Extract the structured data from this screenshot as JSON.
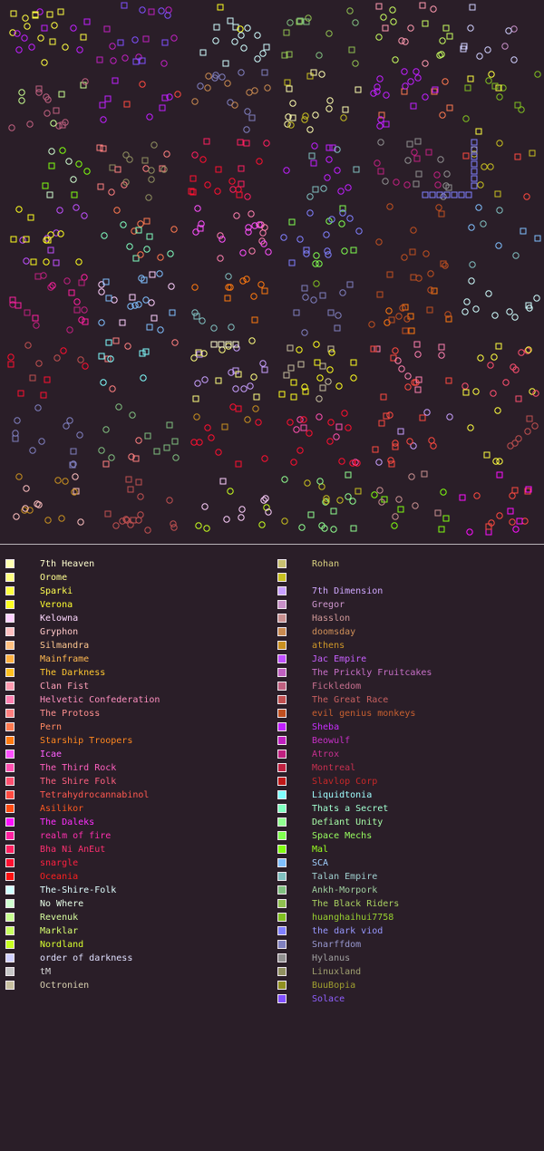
{
  "map": {
    "background": "#2a1e28"
  },
  "legend": {
    "columns": [
      [
        {
          "name": "7th Heaven",
          "color": "#ffffb0",
          "text": "#ffffd0"
        },
        {
          "name": "Orome",
          "color": "#ffff80",
          "text": "#ffff90"
        },
        {
          "name": "Sparki",
          "color": "#ffff40",
          "text": "#ffff50"
        },
        {
          "name": "Verona",
          "color": "#ffff20",
          "text": "#ffff30"
        },
        {
          "name": "Kelowna",
          "color": "#ffd0ff",
          "text": "#ffd8ff"
        },
        {
          "name": "Gryphon",
          "color": "#ffc0c0",
          "text": "#ffc8c8"
        },
        {
          "name": "Silmandra",
          "color": "#ffc080",
          "text": "#ffc890"
        },
        {
          "name": "Mainframe",
          "color": "#ffb040",
          "text": "#ffb850"
        },
        {
          "name": "The Darkness",
          "color": "#ffc020",
          "text": "#ffc830"
        },
        {
          "name": "Clan Fist",
          "color": "#ff9ab0",
          "text": "#ffa0b8"
        },
        {
          "name": "Helvetic Confederation",
          "color": "#ff80b0",
          "text": "#ff90c0"
        },
        {
          "name": "The Protoss",
          "color": "#ff8080",
          "text": "#ff9090"
        },
        {
          "name": "Pern",
          "color": "#ff7a50",
          "text": "#ff8860"
        },
        {
          "name": "Starship Troopers",
          "color": "#ff7a10",
          "text": "#ff8820"
        },
        {
          "name": "Icae",
          "color": "#ff50ff",
          "text": "#ff60ff"
        },
        {
          "name": "The Third Rock",
          "color": "#ff50b0",
          "text": "#ff60c0"
        },
        {
          "name": "The Shire Folk",
          "color": "#ff5070",
          "text": "#ff6080"
        },
        {
          "name": "Tetrahydrocannabinol",
          "color": "#ff4a40",
          "text": "#ff5a50"
        },
        {
          "name": "Asilikor",
          "color": "#ff4a10",
          "text": "#ff5a20"
        },
        {
          "name": "The Daleks",
          "color": "#ff10ff",
          "text": "#ff30ff"
        },
        {
          "name": "realm of fire",
          "color": "#ff20a0",
          "text": "#ff30b0"
        },
        {
          "name": "Bha Ni AnEut",
          "color": "#ff2060",
          "text": "#ff3070"
        },
        {
          "name": "snargle",
          "color": "#ff1030",
          "text": "#ff2040"
        },
        {
          "name": "Oceania",
          "color": "#ff1010",
          "text": "#ff2020"
        },
        {
          "name": "The-Shire-Folk",
          "color": "#d0ffff",
          "text": "#e0ffff"
        },
        {
          "name": "No Where",
          "color": "#d0ffd0",
          "text": "#e8ffe8"
        },
        {
          "name": "Revenuk",
          "color": "#c8ff90",
          "text": "#d8ffa0"
        },
        {
          "name": "Marklar",
          "color": "#c8ff60",
          "text": "#d8ff70"
        },
        {
          "name": "Nordland",
          "color": "#c8ff20",
          "text": "#d8ff30"
        },
        {
          "name": "order of darkness",
          "color": "#d0d0ff",
          "text": "#e0e0ff"
        },
        {
          "name": "tM",
          "color": "#c8c8c8",
          "text": "#d8d8d8"
        },
        {
          "name": "Octronien",
          "color": "#c8c0a0",
          "text": "#d8d0b0"
        }
      ],
      [
        {
          "name": "Rohan",
          "color": "#c8c070",
          "text": "#d8d080"
        },
        {
          "name": "",
          "color": "#c8c020",
          "text": "#d8d030"
        },
        {
          "name": "7th Dimension",
          "color": "#c8a0ff",
          "text": "#d0a8ff"
        },
        {
          "name": "Gregor",
          "color": "#c890c8",
          "text": "#d098d0"
        },
        {
          "name": "Hasslon",
          "color": "#c89090",
          "text": "#d09898"
        },
        {
          "name": "doomsday",
          "color": "#c88a50",
          "text": "#d09058"
        },
        {
          "name": "athens",
          "color": "#c89020",
          "text": "#d09828"
        },
        {
          "name": "Jac Empire",
          "color": "#c050ff",
          "text": "#c860ff"
        },
        {
          "name": "The Prickly Fruitcakes",
          "color": "#c060c0",
          "text": "#c870c8"
        },
        {
          "name": "Fickledom",
          "color": "#c06080",
          "text": "#c87090"
        },
        {
          "name": "The Great Race",
          "color": "#c05050",
          "text": "#c86060"
        },
        {
          "name": "evil genius monkeys",
          "color": "#c05020",
          "text": "#c86030"
        },
        {
          "name": "Sheba",
          "color": "#c020ff",
          "text": "#c830ff"
        },
        {
          "name": "Beowulf",
          "color": "#c020c0",
          "text": "#c830c8"
        },
        {
          "name": "Atrox",
          "color": "#c02080",
          "text": "#c83090"
        },
        {
          "name": "Montreal",
          "color": "#c02040",
          "text": "#c83050"
        },
        {
          "name": "Slavlop Corp",
          "color": "#c01818",
          "text": "#c82828"
        },
        {
          "name": "Liquidtonia",
          "color": "#80ffff",
          "text": "#a0ffff"
        },
        {
          "name": "Thats a Secret",
          "color": "#80ffc0",
          "text": "#a0ffd0"
        },
        {
          "name": "Defiant Unity",
          "color": "#90ff90",
          "text": "#a8ffa8"
        },
        {
          "name": "Space Mechs",
          "color": "#80ff50",
          "text": "#98ff60"
        },
        {
          "name": "Mal",
          "color": "#80ff10",
          "text": "#98ff20"
        },
        {
          "name": "SCA",
          "color": "#80c0ff",
          "text": "#a0d0ff"
        },
        {
          "name": "Talan Empire",
          "color": "#80c0c0",
          "text": "#a0d0d0"
        },
        {
          "name": "Ankh-Morpork",
          "color": "#80c080",
          "text": "#a0d0a0"
        },
        {
          "name": "The Black Riders",
          "color": "#90c050",
          "text": "#a8d060"
        },
        {
          "name": "huanghaihui7758",
          "color": "#80c020",
          "text": "#98d030"
        },
        {
          "name": "the dark viod",
          "color": "#8080ff",
          "text": "#9898ff"
        },
        {
          "name": "Snarffdom",
          "color": "#8080c0",
          "text": "#9898d0"
        },
        {
          "name": "Hylanus",
          "color": "#909090",
          "text": "#a0a0a0"
        },
        {
          "name": "Linuxland",
          "color": "#909060",
          "text": "#a0a070"
        },
        {
          "name": "BuuBopia",
          "color": "#909020",
          "text": "#a0a030"
        },
        {
          "name": "Solace",
          "color": "#8050ff",
          "text": "#9060ff"
        }
      ]
    ]
  }
}
